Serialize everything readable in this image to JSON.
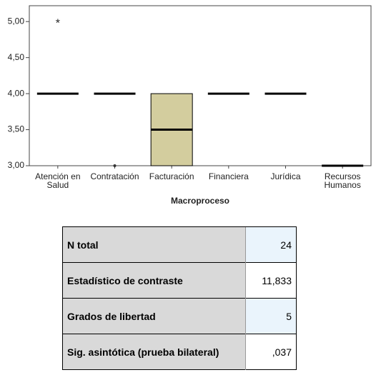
{
  "chart_data": {
    "type": "boxplot",
    "x_label": "Macroproceso",
    "categories": [
      "Atención en Salud",
      "Contratación",
      "Facturación",
      "Financiera",
      "Jurídica",
      "Recursos Humanos"
    ],
    "boxes": [
      {
        "min": 4,
        "q1": 4,
        "median": 4,
        "q3": 4,
        "max": 4,
        "extremes": [
          5
        ]
      },
      {
        "min": 4,
        "q1": 4,
        "median": 4,
        "q3": 4,
        "max": 4,
        "outliers": [
          3
        ]
      },
      {
        "min": 3,
        "q1": 3,
        "median": 3.5,
        "q3": 4,
        "max": 4
      },
      {
        "min": 4,
        "q1": 4,
        "median": 4,
        "q3": 4,
        "max": 4
      },
      {
        "min": 4,
        "q1": 4,
        "median": 4,
        "q3": 4,
        "max": 4
      },
      {
        "min": 3,
        "q1": 3,
        "median": 3,
        "q3": 3,
        "max": 3
      }
    ],
    "color": "#d3cd9e",
    "ylim": [
      3,
      5.22
    ],
    "yticks": [
      {
        "value": 3,
        "label": "3,00"
      },
      {
        "value": 3.5,
        "label": "3,50"
      },
      {
        "value": 4,
        "label": "4,00"
      },
      {
        "value": 4.5,
        "label": "4,50"
      },
      {
        "value": 5,
        "label": "5,00"
      }
    ]
  },
  "table": {
    "rows": [
      [
        "N total",
        "24"
      ],
      [
        "Estadístico de contraste",
        "11,833"
      ],
      [
        "Grados de libertad",
        "5"
      ],
      [
        "Sig. asintótica (prueba bilateral)",
        ",037"
      ]
    ]
  }
}
